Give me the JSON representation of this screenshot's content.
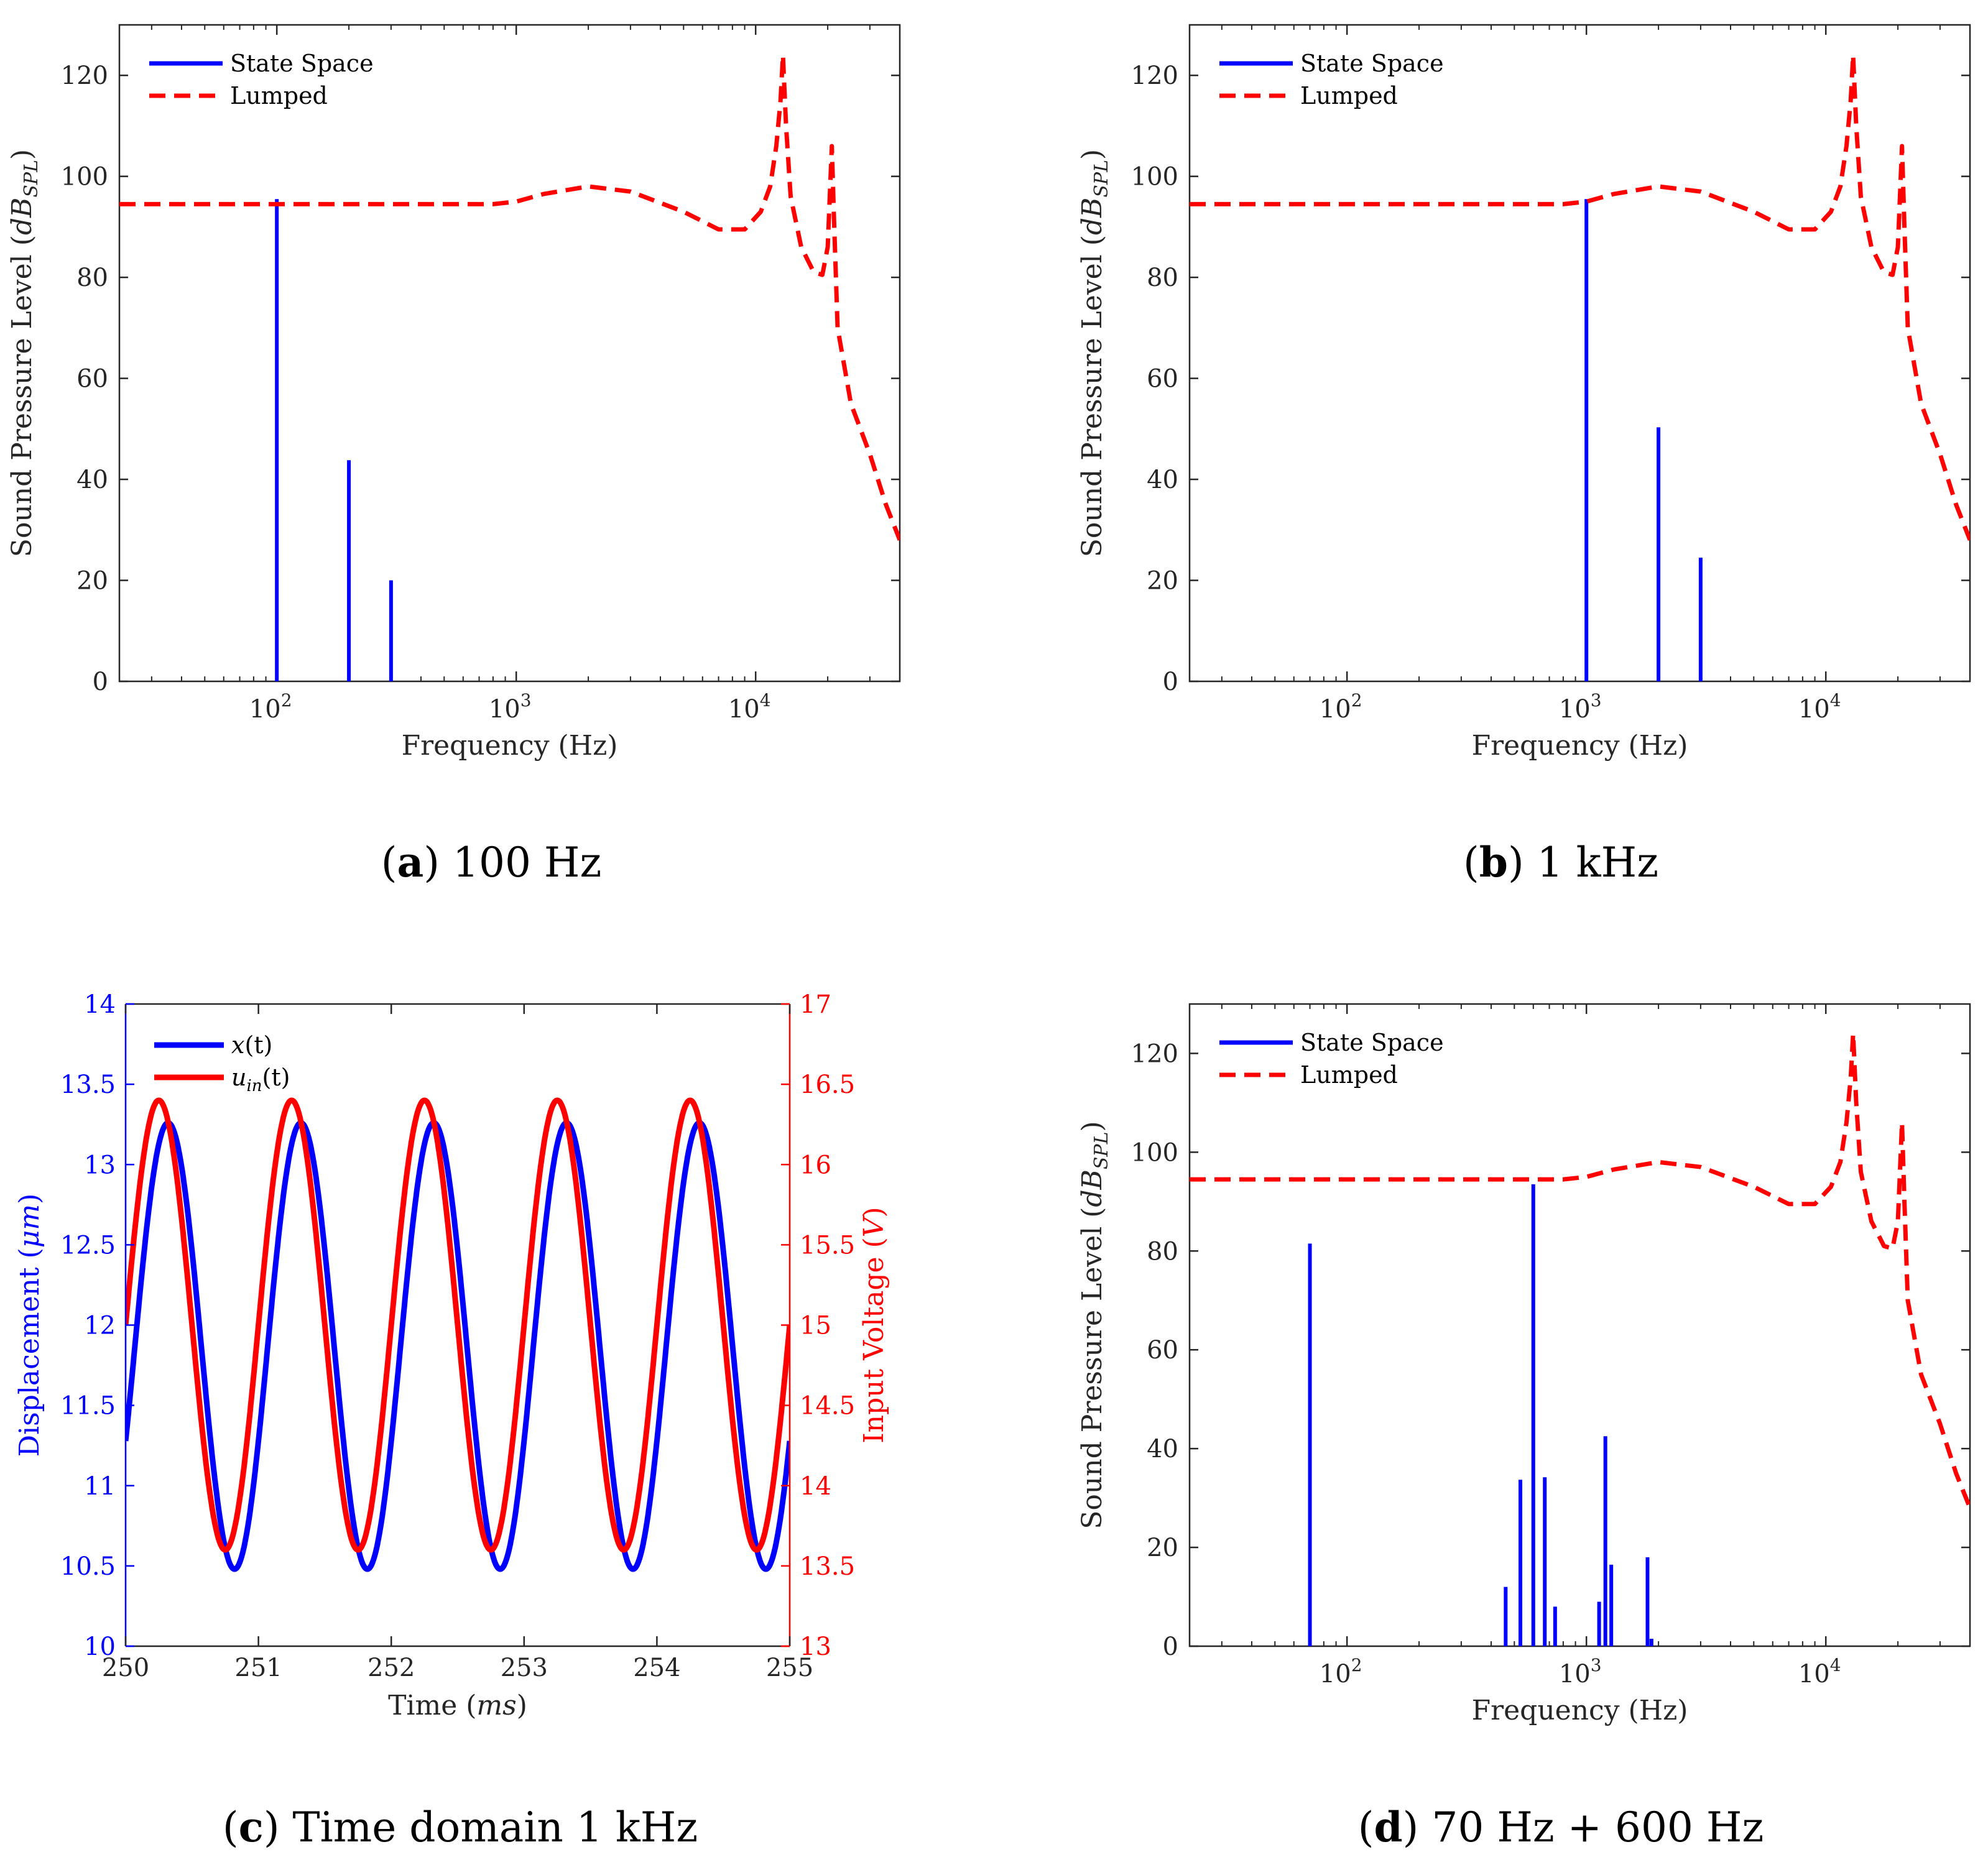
{
  "chart_data": [
    {
      "panel": "a",
      "type": "line",
      "caption_letter": "a",
      "caption_text": " 100 Hz",
      "xlabel": "Frequency (Hz)",
      "ylabel_main": "Sound Pressure Level (",
      "ylabel_math": "dB",
      "ylabel_sub": "SPL",
      "ylabel_close": ")",
      "xscale": "log",
      "xlim": [
        22,
        40000
      ],
      "ylim": [
        0,
        130
      ],
      "yticks": [
        0,
        20,
        40,
        60,
        80,
        100,
        120
      ],
      "xtick_base": "10",
      "xticks": [
        {
          "value": 100,
          "exp": "2"
        },
        {
          "value": 1000,
          "exp": "3"
        },
        {
          "value": 10000,
          "exp": "4"
        }
      ],
      "legend": {
        "position": "top-left",
        "entries": [
          "State Space",
          "Lumped"
        ]
      },
      "grid": false,
      "series": [
        {
          "name": "State Space",
          "style": "stem",
          "color": "#0000ff",
          "x": [
            100,
            200,
            300
          ],
          "y": [
            95.5,
            43.8,
            20
          ]
        },
        {
          "name": "Lumped",
          "style": "dashed",
          "color": "#ff0000",
          "x": [
            22,
            50,
            100,
            300,
            800,
            1000,
            1300,
            2000,
            3000,
            5000,
            7000,
            9000,
            10500,
            11500,
            12200,
            12700,
            13000,
            13400,
            14000,
            15500,
            17500,
            19000,
            20000,
            20800,
            21300,
            22000,
            25000,
            30000,
            35000,
            40000
          ],
          "y": [
            94.5,
            94.5,
            94.5,
            94.5,
            94.5,
            95,
            96.5,
            98,
            97,
            93,
            89.5,
            89.5,
            93,
            98,
            106,
            115,
            124,
            110,
            96,
            86,
            81,
            80.5,
            86,
            106,
            90,
            70,
            55,
            45,
            35,
            28
          ]
        }
      ]
    },
    {
      "panel": "b",
      "type": "line",
      "caption_letter": "b",
      "caption_text": " 1 kHz",
      "xlabel": "Frequency (Hz)",
      "ylabel_main": "Sound Pressure Level (",
      "ylabel_math": "dB",
      "ylabel_sub": "SPL",
      "ylabel_close": ")",
      "xscale": "log",
      "xlim": [
        22,
        40000
      ],
      "ylim": [
        0,
        130
      ],
      "yticks": [
        0,
        20,
        40,
        60,
        80,
        100,
        120
      ],
      "xtick_base": "10",
      "xticks": [
        {
          "value": 100,
          "exp": "2"
        },
        {
          "value": 1000,
          "exp": "3"
        },
        {
          "value": 10000,
          "exp": "4"
        }
      ],
      "legend": {
        "position": "top-left",
        "entries": [
          "State Space",
          "Lumped"
        ]
      },
      "grid": false,
      "series": [
        {
          "name": "State Space",
          "style": "stem",
          "color": "#0000ff",
          "x": [
            1000,
            2000,
            3000
          ],
          "y": [
            95.5,
            50.3,
            24.5
          ]
        },
        {
          "name": "Lumped",
          "style": "dashed",
          "color": "#ff0000",
          "x": [
            22,
            50,
            100,
            300,
            800,
            1000,
            1300,
            2000,
            3000,
            5000,
            7000,
            9000,
            10500,
            11500,
            12200,
            12700,
            13000,
            13400,
            14000,
            15500,
            17500,
            19000,
            20000,
            20800,
            21300,
            22000,
            25000,
            30000,
            35000,
            40000
          ],
          "y": [
            94.5,
            94.5,
            94.5,
            94.5,
            94.5,
            95,
            96.5,
            98,
            97,
            93,
            89.5,
            89.5,
            93,
            98,
            106,
            115,
            124,
            110,
            96,
            86,
            81,
            80.5,
            86,
            106,
            90,
            70,
            55,
            45,
            35,
            28
          ]
        }
      ]
    },
    {
      "panel": "c",
      "type": "line",
      "caption_letter": "c",
      "caption_text": " Time domain 1 kHz",
      "xlabel_main": "Time (",
      "xlabel_math": "ms",
      "xlabel_close": ")",
      "ylabel_left_main": "Displacement (",
      "ylabel_left_math": "μm",
      "ylabel_left_close": ")",
      "ylabel_right_main": "Input Voltage (",
      "ylabel_right_math": "V",
      "ylabel_right_close": ")",
      "xlim": [
        250,
        255
      ],
      "xticks": [
        "250",
        "251",
        "252",
        "253",
        "254",
        "255"
      ],
      "ylim_left": [
        10,
        14
      ],
      "yticks_left": [
        "10",
        "10.5",
        "11",
        "11.5",
        "12",
        "12.5",
        "13",
        "13.5",
        "14"
      ],
      "ylim_right": [
        13,
        17
      ],
      "yticks_right": [
        "13",
        "13.5",
        "14",
        "14.5",
        "15",
        "15.5",
        "16",
        "16.5",
        "17"
      ],
      "legend": {
        "position": "top-left",
        "entries": [
          {
            "math": "x",
            "sub": "",
            "rest": "(t)"
          },
          {
            "math": "u",
            "sub": "in",
            "rest": "(t)"
          }
        ]
      },
      "grid": false,
      "series": [
        {
          "name": "x(t)",
          "axis": "left",
          "color": "#0000ff",
          "frequency_khz": 1,
          "center": 11.87,
          "amplitude": 1.39,
          "peak_time_ms": 250.32
        },
        {
          "name": "u_in(t)",
          "axis": "right",
          "color": "#ff0000",
          "frequency_khz": 1,
          "center": 15.0,
          "amplitude": 1.4,
          "peak_time_ms": 250.25
        }
      ]
    },
    {
      "panel": "d",
      "type": "line",
      "caption_letter": "d",
      "caption_text": " 70 Hz + 600 Hz",
      "xlabel": "Frequency (Hz)",
      "ylabel_main": "Sound Pressure Level (",
      "ylabel_math": "dB",
      "ylabel_sub": "SPL",
      "ylabel_close": ")",
      "xscale": "log",
      "xlim": [
        22,
        40000
      ],
      "ylim": [
        0,
        130
      ],
      "yticks": [
        0,
        20,
        40,
        60,
        80,
        100,
        120
      ],
      "xtick_base": "10",
      "xticks": [
        {
          "value": 100,
          "exp": "2"
        },
        {
          "value": 1000,
          "exp": "3"
        },
        {
          "value": 10000,
          "exp": "4"
        }
      ],
      "legend": {
        "position": "top-left",
        "entries": [
          "State Space",
          "Lumped"
        ]
      },
      "grid": false,
      "series": [
        {
          "name": "State Space",
          "style": "stem",
          "color": "#0000ff",
          "x": [
            70,
            460,
            530,
            600,
            670,
            740,
            1130,
            1200,
            1270,
            1800,
            1870
          ],
          "y": [
            81.5,
            12,
            33.7,
            93.5,
            34.2,
            8,
            9,
            42.5,
            16.5,
            18,
            1.5
          ]
        },
        {
          "name": "Lumped",
          "style": "dashed",
          "color": "#ff0000",
          "x": [
            22,
            50,
            100,
            300,
            800,
            1000,
            1300,
            2000,
            3000,
            5000,
            7000,
            9000,
            10500,
            11500,
            12200,
            12700,
            13000,
            13400,
            14000,
            15500,
            17500,
            19000,
            20000,
            20800,
            21300,
            22000,
            25000,
            30000,
            35000,
            40000
          ],
          "y": [
            94.5,
            94.5,
            94.5,
            94.5,
            94.5,
            95,
            96.5,
            98,
            97,
            93,
            89.5,
            89.5,
            93,
            98,
            106,
            115,
            124,
            110,
            96,
            86,
            81,
            80.5,
            86,
            106,
            90,
            70,
            55,
            45,
            35,
            28
          ]
        }
      ]
    }
  ]
}
